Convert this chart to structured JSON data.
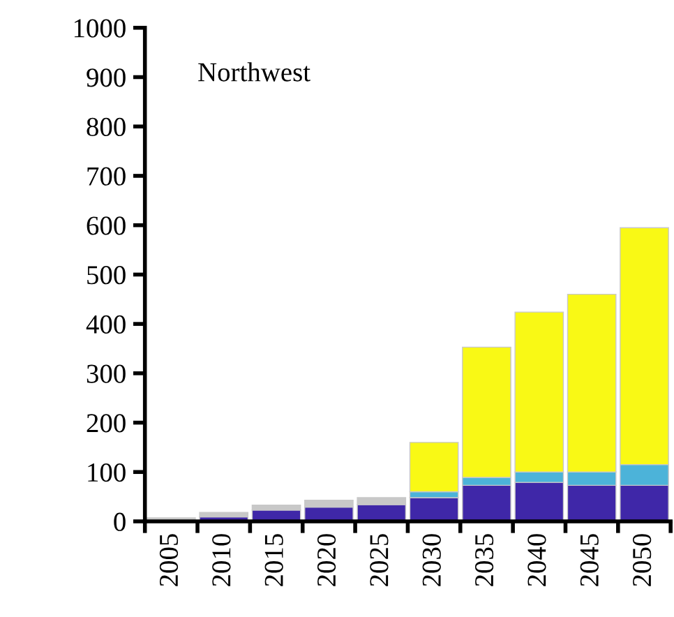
{
  "chart_data": {
    "type": "bar",
    "stacked": true,
    "annotations": [
      "Northwest"
    ],
    "categories": [
      "2005",
      "2010",
      "2015",
      "2020",
      "2025",
      "2030",
      "2035",
      "2040",
      "2045",
      "2050"
    ],
    "series": [
      {
        "color": "#3f27a8",
        "values": [
          2,
          9,
          23,
          29,
          34,
          48,
          73,
          79,
          73,
          73
        ]
      },
      {
        "color": "#4cb3d9",
        "values": [
          null,
          null,
          null,
          null,
          null,
          12,
          16,
          21,
          27,
          42
        ]
      },
      {
        "color": "#f9f915",
        "values": [
          null,
          null,
          null,
          null,
          null,
          100,
          264,
          324,
          360,
          480
        ]
      },
      {
        "color": "#c8c8c8",
        "values": [
          5,
          9,
          10,
          14,
          14,
          null,
          null,
          null,
          null,
          null
        ]
      }
    ],
    "ylim": [
      0,
      1000
    ],
    "yticks": [
      0,
      100,
      200,
      300,
      400,
      500,
      600,
      700,
      800,
      900,
      1000
    ],
    "grid": false,
    "legend": false
  }
}
